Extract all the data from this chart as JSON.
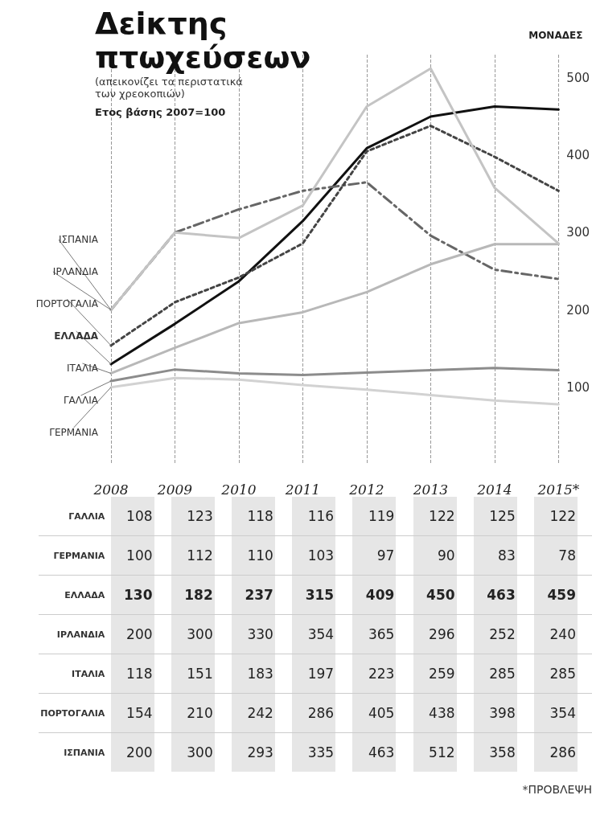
{
  "chart_data": {
    "type": "line",
    "title": "Δεiκτης πτωχεύσεων",
    "subtitle": "(απεικονίζει τα περιστατικά των χρεοκοπιών)",
    "ylabel": "ΜΟΝΑΔΕΣ",
    "categories": [
      "2008",
      "2009",
      "2010",
      "2011",
      "2012",
      "2013",
      "2014",
      "2015*"
    ],
    "series": [
      {
        "name": "ΓΑΛΛΙΑ",
        "color": "#8c8c8c",
        "line_style": "solid",
        "values": [
          108,
          123,
          118,
          116,
          119,
          122,
          125,
          122
        ]
      },
      {
        "name": "ΓΕΡΜΑΝΙΑ",
        "color": "#d2d2d2",
        "line_style": "solid",
        "values": [
          100,
          112,
          110,
          103,
          97,
          90,
          83,
          78
        ]
      },
      {
        "name": "ΕΛΛΑΔΑ",
        "color": "#111111",
        "line_style": "solid",
        "values": [
          130,
          182,
          237,
          315,
          409,
          450,
          463,
          459
        ]
      },
      {
        "name": "ΙΡΛΑΝΔΙΑ",
        "color": "#666666",
        "line_style": "dashed",
        "values": [
          200,
          300,
          330,
          354,
          365,
          296,
          252,
          240
        ]
      },
      {
        "name": "ΙΤΑΛΙΑ",
        "color": "#b8b8b8",
        "line_style": "solid",
        "values": [
          118,
          151,
          183,
          197,
          223,
          259,
          285,
          285
        ]
      },
      {
        "name": "ΠΟΡΤΟΓΑΛΙΑ",
        "color": "#444444",
        "line_style": "dotted",
        "values": [
          154,
          210,
          242,
          286,
          405,
          438,
          398,
          354
        ]
      },
      {
        "name": "ΙΣΠΑΝΙΑ",
        "color": "#c4c4c4",
        "line_style": "solid",
        "values": [
          200,
          300,
          293,
          335,
          463,
          512,
          358,
          286
        ]
      }
    ],
    "ylim": [
      0,
      530
    ],
    "yticks": [
      100,
      200,
      300,
      400,
      500
    ],
    "grid": "x",
    "legend": false,
    "data_labels": true,
    "annotations": [
      "Ετος βάσης 2007=100",
      "*ΠΡΟΒΛΕΨΗ"
    ]
  }
}
